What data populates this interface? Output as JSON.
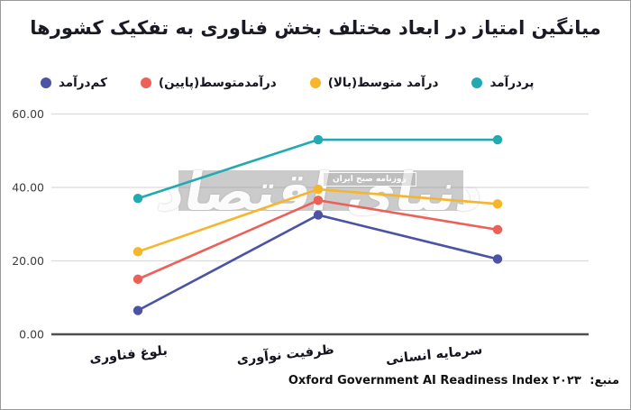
{
  "chart_data": {
    "type": "line",
    "title": "میانگین امتیاز در ابعاد مختلف بخش فناوری به تفکیک کشورها",
    "categories": [
      "بلوغ فناوری",
      "ظرفیت نوآوری",
      "سرمایه انسانی"
    ],
    "series": [
      {
        "name": "کم‌درآمد",
        "color": "#4b53a5",
        "values": [
          6.5,
          32.5,
          20.5
        ]
      },
      {
        "name": "درآمدمتوسط(پایین)",
        "color": "#eb6159",
        "values": [
          15,
          36.5,
          28.5
        ]
      },
      {
        "name": "درآمد متوسط(بالا)",
        "color": "#f7b52c",
        "values": [
          22.5,
          39.5,
          35.5
        ]
      },
      {
        "name": "پردرآمد",
        "color": "#21aab2",
        "values": [
          37,
          53,
          53
        ]
      }
    ],
    "y_ticks": [
      {
        "value": 0,
        "label": "0.00"
      },
      {
        "value": 20,
        "label": "20.00"
      },
      {
        "value": 40,
        "label": "40.00"
      },
      {
        "value": 60,
        "label": "60.00"
      }
    ],
    "ylim": [
      0,
      65
    ],
    "grid": true,
    "legend_position": "top",
    "xlabel": "",
    "ylabel": ""
  },
  "watermark": {
    "main_text": "دنیای اقتصاد",
    "small_text": "روزنامه صبح ایران"
  },
  "source": {
    "label": "منبع:",
    "text": "Oxford Government AI Readiness Index ۲۰۲۳"
  }
}
